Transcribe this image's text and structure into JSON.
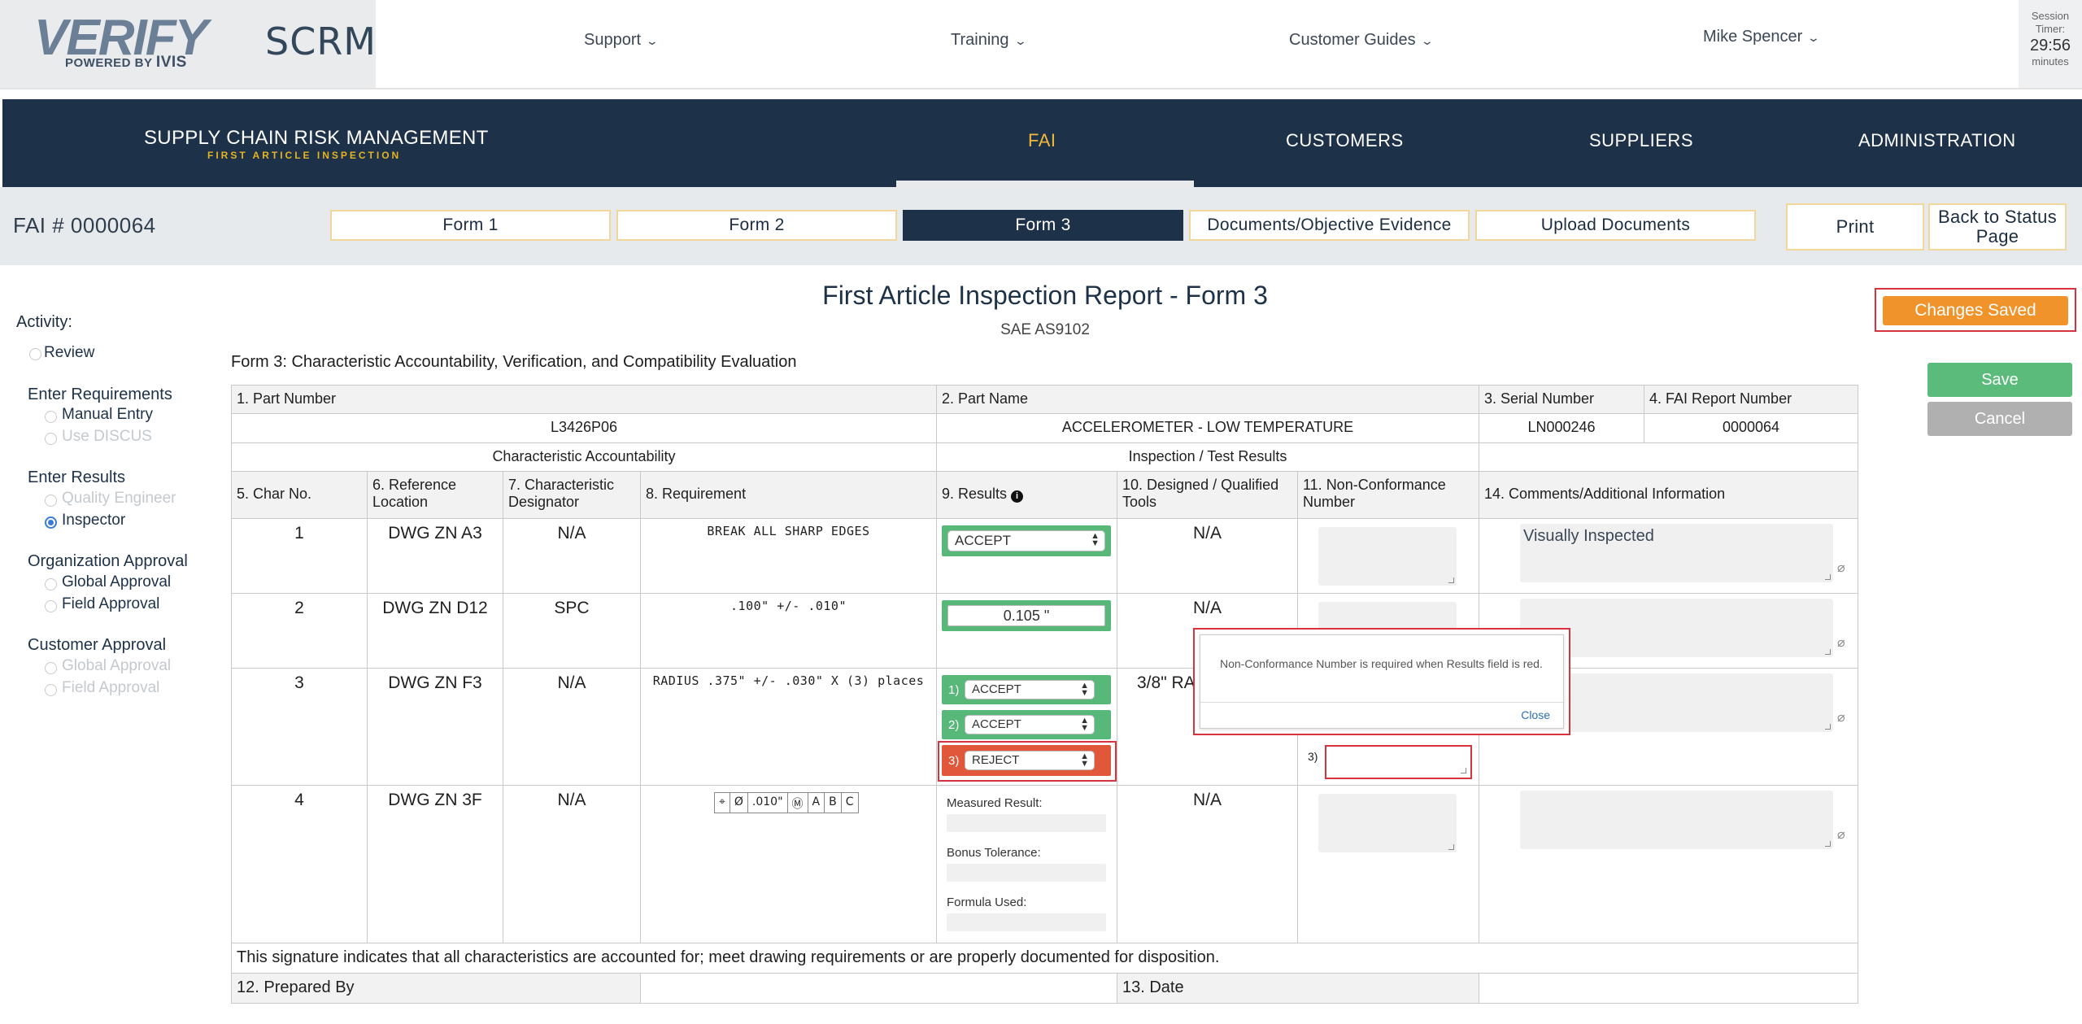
{
  "topbar": {
    "logo_text": "VERIFY",
    "logo_powered": "POWERED BY",
    "logo_brand": "IVIS",
    "app_name": "SCRM",
    "nav": [
      "Support",
      "Training",
      "Customer Guides"
    ],
    "user": "Mike Spencer",
    "session_label_1": "Session",
    "session_label_2": "Timer:",
    "session_time": "29:56",
    "session_unit": "minutes"
  },
  "header": {
    "title": "SUPPLY CHAIN RISK MANAGEMENT",
    "subtitle": "FIRST ARTICLE INSPECTION",
    "nav": [
      "FAI",
      "CUSTOMERS",
      "SUPPLIERS",
      "ADMINISTRATION"
    ],
    "active": "FAI"
  },
  "tabs": {
    "fai_number": "FAI # 0000064",
    "items": [
      "Form 1",
      "Form 2",
      "Form 3",
      "Documents/Objective Evidence",
      "Upload Documents"
    ],
    "active": "Form 3",
    "print": "Print",
    "back_line1": "Back to Status",
    "back_line2": "Page"
  },
  "activity": {
    "label": "Activity:",
    "review": "Review",
    "enter_req": "Enter Requirements",
    "manual_entry": "Manual Entry",
    "use_discus": "Use DISCUS",
    "enter_results": "Enter Results",
    "quality_engineer": "Quality Engineer",
    "inspector": "Inspector",
    "org_approval": "Organization Approval",
    "global_approval": "Global Approval",
    "field_approval": "Field Approval",
    "customer_approval": "Customer Approval",
    "cust_global": "Global Approval",
    "cust_field": "Field Approval",
    "selected": "Inspector"
  },
  "report": {
    "title": "First Article Inspection Report - Form 3",
    "standard": "SAE AS9102",
    "form_label": "Form 3: Characteristic Accountability, Verification, and Compatibility Evaluation"
  },
  "actions": {
    "changes_saved": "Changes Saved",
    "save": "Save",
    "cancel": "Cancel"
  },
  "table": {
    "h_part_number": "1. Part Number",
    "h_part_name": "2. Part Name",
    "h_serial": "3. Serial Number",
    "h_fai_report": "4. FAI Report Number",
    "part_number": "L3426P06",
    "part_name": "ACCELEROMETER - LOW TEMPERATURE",
    "serial": "LN000246",
    "fai_report": "0000064",
    "sec_char": "Characteristic Accountability",
    "sec_insp": "Inspection / Test Results",
    "col_char_no": "5. Char No.",
    "col_ref_loc": "6. Reference Location",
    "col_designator": "7. Characteristic Designator",
    "col_requirement": "8. Requirement",
    "col_results": "9. Results",
    "col_tools": "10. Designed / Qualified Tools",
    "col_nc": "11. Non-Conformance Number",
    "col_comments": "14. Comments/Additional Information",
    "rows": [
      {
        "no": "1",
        "ref": "DWG ZN A3",
        "des": "N/A",
        "req": "BREAK ALL SHARP EDGES",
        "result": "ACCEPT",
        "tools": "N/A",
        "comment": "Visually Inspected"
      },
      {
        "no": "2",
        "ref": "DWG ZN D12",
        "des": "SPC",
        "req": ".100\" +/- .010\"",
        "result": "0.105 \"",
        "tools": "N/A",
        "comment": ""
      },
      {
        "no": "3",
        "ref": "DWG ZN F3",
        "des": "N/A",
        "req": "RADIUS .375\" +/- .030\" X (3) places",
        "results": [
          "ACCEPT",
          "ACCEPT",
          "REJECT"
        ],
        "tools": "3/8\" RAD",
        "comment": ""
      },
      {
        "no": "4",
        "ref": "DWG ZN 3F",
        "des": "N/A",
        "req_gdt": [
          "⌖",
          "Ø",
          ".010\"",
          "Ⓜ",
          "A",
          "B",
          "C"
        ],
        "tools": "N/A",
        "comment": ""
      }
    ],
    "labels_1": "1)",
    "labels_2": "2)",
    "labels_3": "3)",
    "measured": "Measured Result:",
    "bonus": "Bonus Tolerance:",
    "formula": "Formula Used:",
    "signature_note": "This signature indicates that all characteristics are accounted for; meet drawing requirements or are properly documented for disposition.",
    "prepared_by": "12. Prepared By",
    "date": "13. Date"
  },
  "popup": {
    "message": "Non-Conformance Number is required when Results field is red.",
    "close": "Close"
  },
  "colors": {
    "navy": "#1d3149",
    "accent": "#f1b83a",
    "accept": "#58b879",
    "reject": "#e0573a",
    "changes": "#f0932b"
  }
}
